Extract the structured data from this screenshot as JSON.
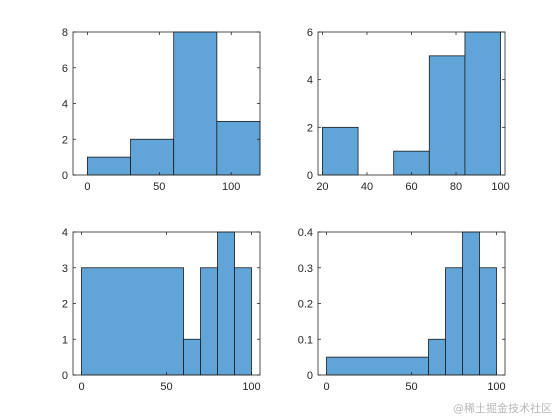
{
  "chart_data": [
    {
      "type": "bar",
      "xlim": [
        -10,
        120
      ],
      "ylim": [
        0,
        8
      ],
      "xticks": [
        "0",
        "50",
        "100"
      ],
      "yticks": [
        "0",
        "2",
        "4",
        "6",
        "8"
      ],
      "bins": [
        {
          "x0": 0,
          "x1": 30,
          "value": 1
        },
        {
          "x0": 30,
          "x1": 60,
          "value": 2
        },
        {
          "x0": 60,
          "x1": 90,
          "value": 8
        },
        {
          "x0": 90,
          "x1": 120,
          "value": 3
        }
      ]
    },
    {
      "type": "bar",
      "xlim": [
        18,
        102
      ],
      "ylim": [
        0,
        6
      ],
      "xticks": [
        "20",
        "40",
        "60",
        "80",
        "100"
      ],
      "yticks": [
        "0",
        "2",
        "4",
        "6"
      ],
      "bins": [
        {
          "x0": 20,
          "x1": 36,
          "value": 2
        },
        {
          "x0": 36,
          "x1": 52,
          "value": 0
        },
        {
          "x0": 52,
          "x1": 68,
          "value": 1
        },
        {
          "x0": 68,
          "x1": 84,
          "value": 5
        },
        {
          "x0": 84,
          "x1": 100,
          "value": 6
        }
      ]
    },
    {
      "type": "bar",
      "xlim": [
        -5,
        105
      ],
      "ylim": [
        0,
        4
      ],
      "xticks": [
        "0",
        "50",
        "100"
      ],
      "yticks": [
        "0",
        "1",
        "2",
        "3",
        "4"
      ],
      "bins": [
        {
          "x0": 0,
          "x1": 60,
          "value": 3
        },
        {
          "x0": 60,
          "x1": 70,
          "value": 1
        },
        {
          "x0": 70,
          "x1": 80,
          "value": 3
        },
        {
          "x0": 80,
          "x1": 90,
          "value": 4
        },
        {
          "x0": 90,
          "x1": 100,
          "value": 3
        }
      ]
    },
    {
      "type": "bar",
      "xlim": [
        -5,
        105
      ],
      "ylim": [
        0,
        0.4
      ],
      "xticks": [
        "0",
        "50",
        "100"
      ],
      "yticks": [
        "0",
        "0.1",
        "0.2",
        "0.3",
        "0.4"
      ],
      "bins": [
        {
          "x0": 0,
          "x1": 60,
          "value": 0.05
        },
        {
          "x0": 60,
          "x1": 70,
          "value": 0.1
        },
        {
          "x0": 70,
          "x1": 80,
          "value": 0.3
        },
        {
          "x0": 80,
          "x1": 90,
          "value": 0.4
        },
        {
          "x0": 90,
          "x1": 100,
          "value": 0.3
        }
      ]
    }
  ],
  "style": {
    "bar_fill": "#61a5d8",
    "bar_edge": "#1a1a1a",
    "axes_color": "#262626"
  },
  "watermark": "@稀土掘金技术社区"
}
